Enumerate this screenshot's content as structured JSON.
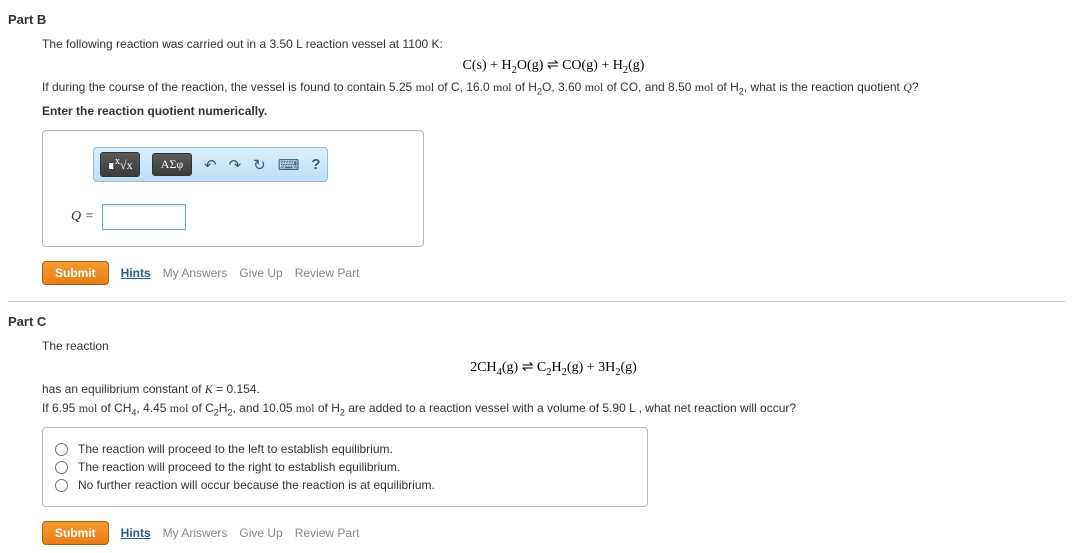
{
  "partB": {
    "header": "Part B",
    "intro": "The following reaction was carried out in a 3.50 L reaction vessel at 1100 K:",
    "equation_html": "C(s) + H<sub>2</sub>O(g) &#8652; CO(g) + H<sub>2</sub>(g)",
    "question_html": "If during the course of the reaction, the vessel is found to contain 5.25 <span class='serif'>mol</span> of C, 16.0 <span class='serif'>mol</span> of H<sub>2</sub>O, 3.60 <span class='serif'>mol</span> of CO, and 8.50 <span class='serif'>mol</span> of H<sub>2</sub>, what is the reaction quotient <i class='serif'>Q</i>?",
    "instruction": "Enter the reaction quotient numerically.",
    "toolbar": {
      "btn1_html": "&#8718;<sup>x</sup>&#8730;x",
      "btn2": "ΑΣφ",
      "undo": "↶",
      "redo": "↷",
      "reset": "↻",
      "keyboard": "⌨",
      "help": "?"
    },
    "answer_label_html": "<i>Q</i> =",
    "answer_value": "",
    "submit": "Submit",
    "hints": "Hints",
    "my_answers": "My Answers",
    "give_up": "Give Up",
    "review": "Review Part"
  },
  "partC": {
    "header": "Part C",
    "intro": "The reaction",
    "equation_html": "2CH<sub>4</sub>(g) &#8652; C<sub>2</sub>H<sub>2</sub>(g) + 3H<sub>2</sub>(g)",
    "k_line_html": "has an equilibrium constant of <i class='serif'>K</i> = 0.154.",
    "question_html": "If 6.95 <span class='serif'>mol</span> of CH<sub>4</sub>, 4.45 <span class='serif'>mol</span> of C<sub>2</sub>H<sub>2</sub>, and 10.05 <span class='serif'>mol</span> of H<sub>2</sub> are added to a reaction vessel with a volume of 5.90 L , what net reaction will occur?",
    "options": [
      "The reaction will proceed to the left to establish equilibrium.",
      "The reaction will proceed to the right to establish equilibrium.",
      "No further reaction will occur because the reaction is at equilibrium."
    ],
    "submit": "Submit",
    "hints": "Hints",
    "my_answers": "My Answers",
    "give_up": "Give Up",
    "review": "Review Part"
  }
}
